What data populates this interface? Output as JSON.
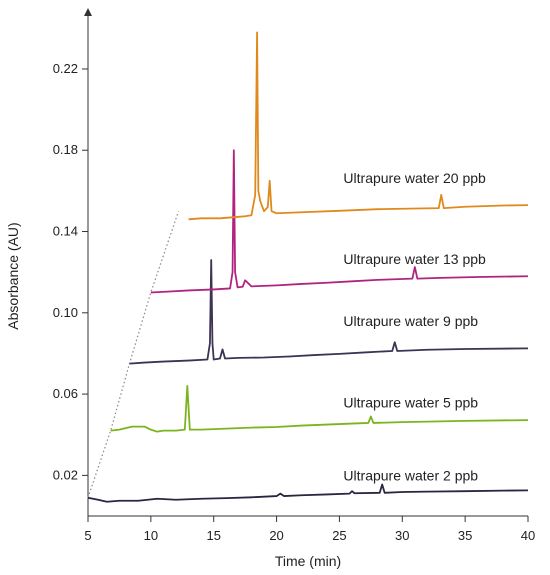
{
  "chart_data": {
    "type": "line",
    "title": "",
    "xlabel": "Time (min)",
    "ylabel": "Absorbance (AU)",
    "xlim": [
      5,
      40
    ],
    "ylim": [
      0.0,
      0.25
    ],
    "xticks": [
      5,
      10,
      15,
      20,
      25,
      30,
      35,
      40
    ],
    "yticks": [
      0.02,
      0.06,
      0.1,
      0.14,
      0.18,
      0.22
    ],
    "ytick_labels": [
      "0.02",
      "0.06",
      "0.10",
      "0.14",
      "0.18",
      "0.22"
    ],
    "grid": false,
    "series": [
      {
        "name": "Ultrapure water 2 ppb",
        "color": "#2b2540",
        "x": [
          5.0,
          5.8,
          6.5,
          7.5,
          9.0,
          10.5,
          12.0,
          14.0,
          16.0,
          18.0,
          20.0,
          20.3,
          20.6,
          22.0,
          24.0,
          25.8,
          26.0,
          26.2,
          28.2,
          28.4,
          28.6,
          30.0,
          32.0,
          35.0,
          38.0,
          40.0
        ],
        "y": [
          0.009,
          0.008,
          0.007,
          0.0075,
          0.0075,
          0.0085,
          0.008,
          0.0085,
          0.0088,
          0.0092,
          0.0098,
          0.011,
          0.0098,
          0.0102,
          0.0106,
          0.011,
          0.0122,
          0.0112,
          0.0114,
          0.0155,
          0.0114,
          0.0118,
          0.012,
          0.0122,
          0.0125,
          0.0126
        ]
      },
      {
        "name": "Ultrapure water 5 ppb",
        "color": "#7ab51d",
        "x": [
          6.8,
          7.5,
          8.5,
          9.5,
          10.0,
          10.5,
          11.0,
          12.0,
          12.7,
          12.9,
          13.1,
          14.0,
          16.0,
          18.0,
          20.0,
          22.0,
          24.0,
          26.0,
          27.3,
          27.5,
          27.7,
          30.0,
          35.0,
          40.0
        ],
        "y": [
          0.042,
          0.0425,
          0.044,
          0.044,
          0.0425,
          0.0415,
          0.042,
          0.042,
          0.0425,
          0.064,
          0.0425,
          0.0425,
          0.043,
          0.0435,
          0.0438,
          0.0445,
          0.045,
          0.0455,
          0.0458,
          0.049,
          0.0458,
          0.0462,
          0.0468,
          0.0472
        ]
      },
      {
        "name": "Ultrapure water 9 ppb",
        "color": "#3d3355",
        "x": [
          8.3,
          9.5,
          11.0,
          13.0,
          14.5,
          14.7,
          14.8,
          14.9,
          15.0,
          15.5,
          15.7,
          15.9,
          17.0,
          19.0,
          21.0,
          23.0,
          25.0,
          27.0,
          29.2,
          29.4,
          29.6,
          32.0,
          35.0,
          40.0
        ],
        "y": [
          0.075,
          0.0755,
          0.076,
          0.0765,
          0.077,
          0.085,
          0.126,
          0.085,
          0.077,
          0.0775,
          0.082,
          0.0775,
          0.0778,
          0.078,
          0.0785,
          0.0792,
          0.0798,
          0.0805,
          0.0812,
          0.0855,
          0.0812,
          0.0818,
          0.0822,
          0.0825
        ]
      },
      {
        "name": "Ultrapure water 13 ppb",
        "color": "#b0247f",
        "x": [
          10.0,
          11.5,
          13.0,
          15.0,
          16.3,
          16.5,
          16.6,
          16.7,
          16.9,
          17.3,
          17.5,
          18.0,
          20.0,
          22.0,
          24.0,
          26.0,
          28.0,
          30.8,
          31.0,
          31.2,
          33.0,
          36.0,
          40.0
        ],
        "y": [
          0.11,
          0.1105,
          0.111,
          0.1115,
          0.112,
          0.12,
          0.18,
          0.12,
          0.1125,
          0.1128,
          0.116,
          0.113,
          0.1135,
          0.1142,
          0.1148,
          0.1155,
          0.1162,
          0.1168,
          0.1225,
          0.1168,
          0.1172,
          0.1176,
          0.118
        ]
      },
      {
        "name": "Ultrapure water 20 ppb",
        "color": "#e08a1e",
        "x": [
          13.0,
          14.0,
          15.5,
          16.5,
          17.5,
          18.0,
          18.3,
          18.45,
          18.55,
          18.7,
          19.0,
          19.3,
          19.45,
          19.6,
          20.0,
          22.0,
          25.0,
          28.0,
          32.9,
          33.1,
          33.3,
          35.0,
          38.0,
          40.0
        ],
        "y": [
          0.146,
          0.1465,
          0.1465,
          0.147,
          0.1475,
          0.148,
          0.158,
          0.238,
          0.16,
          0.155,
          0.15,
          0.152,
          0.165,
          0.15,
          0.149,
          0.1495,
          0.1502,
          0.151,
          0.1515,
          0.158,
          0.1515,
          0.1522,
          0.1528,
          0.153
        ]
      }
    ],
    "onset_trace": {
      "style": "dotted",
      "color": "#888888",
      "x": [
        5.0,
        6.8,
        8.3,
        10.0,
        12.2
      ],
      "y": [
        0.009,
        0.042,
        0.075,
        0.11,
        0.15
      ]
    },
    "annotations": [
      {
        "text": "Ultrapure water 20 ppb",
        "x": 25.0,
        "y": 0.164
      },
      {
        "text": "Ultrapure water 13 ppb",
        "x": 25.0,
        "y": 0.124
      },
      {
        "text": "Ultrapure water 9 ppb",
        "x": 25.0,
        "y": 0.0935
      },
      {
        "text": "Ultrapure water 5 ppb",
        "x": 25.0,
        "y": 0.0535
      },
      {
        "text": "Ultrapure water 2 ppb",
        "x": 25.0,
        "y": 0.0175
      }
    ]
  }
}
